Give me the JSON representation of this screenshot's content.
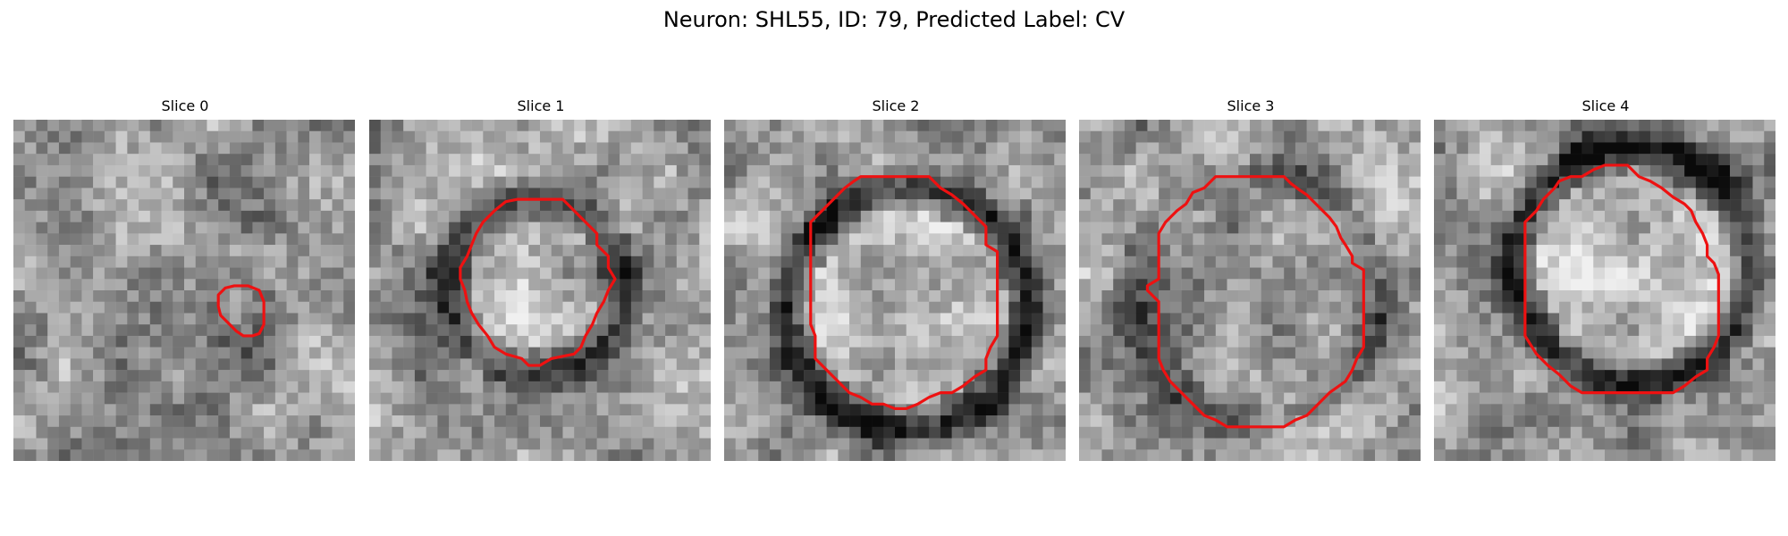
{
  "figure": {
    "title": "Neuron: SHL55, ID: 79, Predicted Label: CV"
  },
  "slices": [
    {
      "label": "Slice 0",
      "ring": "faint",
      "contour": [
        [
          20.6,
          14.6
        ],
        [
          21.6,
          15.0
        ],
        [
          22.0,
          16.0
        ],
        [
          22.0,
          18.0
        ],
        [
          21.6,
          18.8
        ],
        [
          21.0,
          19.0
        ],
        [
          20.2,
          19.0
        ],
        [
          19.6,
          18.6
        ],
        [
          18.8,
          17.8
        ],
        [
          18.2,
          17.2
        ],
        [
          18.0,
          16.4
        ],
        [
          18.0,
          15.4
        ],
        [
          18.6,
          14.8
        ],
        [
          19.4,
          14.6
        ]
      ]
    },
    {
      "label": "Slice 1",
      "ring": "medium",
      "contour": [
        [
          13.0,
          7.0
        ],
        [
          17.0,
          7.0
        ],
        [
          18.0,
          8.0
        ],
        [
          19.0,
          9.0
        ],
        [
          20.0,
          10.0
        ],
        [
          20.0,
          11.0
        ],
        [
          21.0,
          12.0
        ],
        [
          21.0,
          13.0
        ],
        [
          21.6,
          14.0
        ],
        [
          21.0,
          15.0
        ],
        [
          20.6,
          16.0
        ],
        [
          20.0,
          17.0
        ],
        [
          19.6,
          18.0
        ],
        [
          19.0,
          19.0
        ],
        [
          18.6,
          20.0
        ],
        [
          18.0,
          20.6
        ],
        [
          16.0,
          21.0
        ],
        [
          15.0,
          21.6
        ],
        [
          14.0,
          21.6
        ],
        [
          13.4,
          21.0
        ],
        [
          12.0,
          20.6
        ],
        [
          11.0,
          20.0
        ],
        [
          10.4,
          19.0
        ],
        [
          9.6,
          18.0
        ],
        [
          9.0,
          17.0
        ],
        [
          8.6,
          16.0
        ],
        [
          8.4,
          15.0
        ],
        [
          8.0,
          14.0
        ],
        [
          8.0,
          13.0
        ],
        [
          8.6,
          12.0
        ],
        [
          9.0,
          11.0
        ],
        [
          9.4,
          10.0
        ],
        [
          10.0,
          9.0
        ],
        [
          11.0,
          8.0
        ],
        [
          12.0,
          7.2
        ]
      ]
    },
    {
      "label": "Slice 2",
      "ring": "dark",
      "contour": [
        [
          12.0,
          5.0
        ],
        [
          18.0,
          5.0
        ],
        [
          19.0,
          6.0
        ],
        [
          20.0,
          6.6
        ],
        [
          21.0,
          7.4
        ],
        [
          22.0,
          8.4
        ],
        [
          23.0,
          9.4
        ],
        [
          23.0,
          11.0
        ],
        [
          24.0,
          11.6
        ],
        [
          24.0,
          19.0
        ],
        [
          23.4,
          20.0
        ],
        [
          23.0,
          21.0
        ],
        [
          23.0,
          22.0
        ],
        [
          22.0,
          22.6
        ],
        [
          21.0,
          23.4
        ],
        [
          20.0,
          24.0
        ],
        [
          19.0,
          24.0
        ],
        [
          18.0,
          24.4
        ],
        [
          17.0,
          25.0
        ],
        [
          16.0,
          25.4
        ],
        [
          15.0,
          25.4
        ],
        [
          14.0,
          25.0
        ],
        [
          13.0,
          25.0
        ],
        [
          12.0,
          24.4
        ],
        [
          11.0,
          24.0
        ],
        [
          10.0,
          23.0
        ],
        [
          9.0,
          22.0
        ],
        [
          8.0,
          21.0
        ],
        [
          8.0,
          19.0
        ],
        [
          7.6,
          18.0
        ],
        [
          7.6,
          9.0
        ],
        [
          8.6,
          8.0
        ],
        [
          9.6,
          7.0
        ],
        [
          10.6,
          6.0
        ],
        [
          11.4,
          5.4
        ]
      ]
    },
    {
      "label": "Slice 3",
      "ring": "faint",
      "contour": [
        [
          12.0,
          5.0
        ],
        [
          18.0,
          5.0
        ],
        [
          18.6,
          5.6
        ],
        [
          19.4,
          6.2
        ],
        [
          20.0,
          6.6
        ],
        [
          21.0,
          7.6
        ],
        [
          22.0,
          8.6
        ],
        [
          22.6,
          9.4
        ],
        [
          23.0,
          10.4
        ],
        [
          23.4,
          11.0
        ],
        [
          24.0,
          12.0
        ],
        [
          24.0,
          12.6
        ],
        [
          25.0,
          13.2
        ],
        [
          25.0,
          20.0
        ],
        [
          24.4,
          21.0
        ],
        [
          24.0,
          22.0
        ],
        [
          23.4,
          23.0
        ],
        [
          22.0,
          24.0
        ],
        [
          21.0,
          25.0
        ],
        [
          20.0,
          26.0
        ],
        [
          19.0,
          26.4
        ],
        [
          18.0,
          27.0
        ],
        [
          13.0,
          27.0
        ],
        [
          12.0,
          26.4
        ],
        [
          11.0,
          26.0
        ],
        [
          10.0,
          25.0
        ],
        [
          9.0,
          24.0
        ],
        [
          8.0,
          23.0
        ],
        [
          7.4,
          22.0
        ],
        [
          7.0,
          21.0
        ],
        [
          7.0,
          16.0
        ],
        [
          6.0,
          15.0
        ],
        [
          6.0,
          14.6
        ],
        [
          7.0,
          14.0
        ],
        [
          7.0,
          10.0
        ],
        [
          7.6,
          9.0
        ],
        [
          8.6,
          8.0
        ],
        [
          9.4,
          7.4
        ],
        [
          10.0,
          6.4
        ],
        [
          11.0,
          6.0
        ]
      ]
    },
    {
      "label": "Slice 4",
      "ring": "dark",
      "contour": [
        [
          15.0,
          4.0
        ],
        [
          17.0,
          4.0
        ],
        [
          18.0,
          5.0
        ],
        [
          19.0,
          5.4
        ],
        [
          20.0,
          6.0
        ],
        [
          21.0,
          6.8
        ],
        [
          22.0,
          7.4
        ],
        [
          22.6,
          8.0
        ],
        [
          23.0,
          9.0
        ],
        [
          23.6,
          10.0
        ],
        [
          24.0,
          11.0
        ],
        [
          24.0,
          12.0
        ],
        [
          24.6,
          12.6
        ],
        [
          25.0,
          13.6
        ],
        [
          25.0,
          19.0
        ],
        [
          24.6,
          20.0
        ],
        [
          24.0,
          21.0
        ],
        [
          24.0,
          22.0
        ],
        [
          23.0,
          22.6
        ],
        [
          22.0,
          23.4
        ],
        [
          21.0,
          24.0
        ],
        [
          13.0,
          24.0
        ],
        [
          12.0,
          23.4
        ],
        [
          11.0,
          22.4
        ],
        [
          10.0,
          21.6
        ],
        [
          9.0,
          20.6
        ],
        [
          8.0,
          19.0
        ],
        [
          8.0,
          9.0
        ],
        [
          9.0,
          8.0
        ],
        [
          9.6,
          7.0
        ],
        [
          10.6,
          6.0
        ],
        [
          11.0,
          5.4
        ],
        [
          12.0,
          5.0
        ],
        [
          13.0,
          5.0
        ],
        [
          14.0,
          4.4
        ]
      ]
    }
  ],
  "style": {
    "contour_color": "#ee1111",
    "image_grid": 30
  }
}
